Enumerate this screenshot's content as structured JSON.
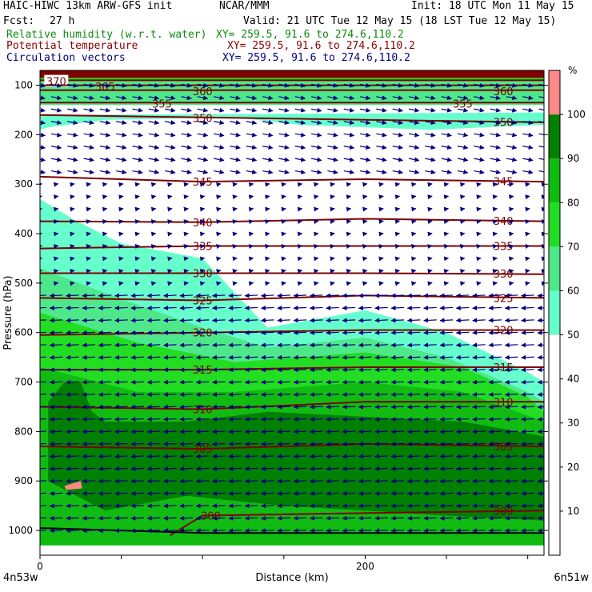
{
  "header": {
    "title_left": "HAIC-HIWC 13km ARW-GFS init",
    "title_mid": "NCAR/MMM",
    "init": "Init: 18 UTC Mon 11 May 15",
    "fcst_label": "Fcst:",
    "fcst_value": "27 h",
    "valid": "Valid: 21 UTC Tue 12 May 15 (18 LST Tue 12 May 15)",
    "field1_name": "Relative humidity (w.r.t. water)",
    "field1_xy": "XY= 259.5, 91.6 to 274.6,110.2",
    "field2_name": "Potential temperature",
    "field2_xy": "XY= 259.5, 91.6 to 274.6,110.2",
    "field3_name": "Circulation vectors",
    "field3_xy": "XY= 259.5, 91.6 to 274.6,110.2"
  },
  "colors": {
    "rh_bands": [
      "#ffffff",
      "#66ffcc",
      "#4ee88a",
      "#22dd22",
      "#11bb11",
      "#007f00",
      "#005f00",
      "#ff8888",
      "#7f0000"
    ],
    "theta": "#7f0000",
    "vectors": "#00007f",
    "surface": "#000000"
  },
  "chart_data": {
    "type": "heatmap",
    "xlabel": "Distance (km)",
    "ylabel": "Pressure (hPa)",
    "xlim": [
      0,
      310
    ],
    "ylim": [
      1050,
      70
    ],
    "x_ticks": [
      "0",
      "200"
    ],
    "x_tick_values": [
      0,
      200
    ],
    "x_minor_step": 50,
    "y_ticks": [
      "100",
      "200",
      "300",
      "400",
      "500",
      "600",
      "700",
      "800",
      "900",
      "1000"
    ],
    "y_tick_values": [
      100,
      200,
      300,
      400,
      500,
      600,
      700,
      800,
      900,
      1000
    ],
    "x_start_label": "4n53w",
    "x_end_label": "6n51w",
    "colorbar": {
      "unit": "%",
      "levels": [
        0,
        10,
        20,
        30,
        40,
        50,
        60,
        70,
        80,
        90,
        100,
        110
      ],
      "labels": [
        "10",
        "20",
        "30",
        "40",
        "50",
        "60",
        "70",
        "80",
        "90",
        "100"
      ],
      "label_values": [
        10,
        20,
        30,
        40,
        50,
        60,
        70,
        80,
        90,
        100
      ],
      "colors": [
        "#ffffff",
        "#ffffff",
        "#ffffff",
        "#ffffff",
        "#ffffff",
        "#66ffcc",
        "#4ee88a",
        "#22dd22",
        "#11bb11",
        "#007f00",
        "#ff8888"
      ]
    },
    "rh_regions": [
      {
        "name": "moist-low-50",
        "level": 50,
        "color": "#66ffcc",
        "boundary": [
          [
            0,
            330
          ],
          [
            20,
            370
          ],
          [
            50,
            420
          ],
          [
            100,
            450
          ],
          [
            140,
            590
          ],
          [
            200,
            555
          ],
          [
            250,
            600
          ],
          [
            300,
            680
          ],
          [
            310,
            700
          ],
          [
            310,
            1030
          ],
          [
            0,
            1030
          ]
        ]
      },
      {
        "name": "moist-low-60",
        "level": 60,
        "color": "#4ee88a",
        "boundary": [
          [
            0,
            470
          ],
          [
            40,
            520
          ],
          [
            100,
            590
          ],
          [
            140,
            630
          ],
          [
            200,
            610
          ],
          [
            250,
            650
          ],
          [
            300,
            720
          ],
          [
            310,
            740
          ],
          [
            310,
            1030
          ],
          [
            0,
            1030
          ]
        ]
      },
      {
        "name": "moist-low-70",
        "level": 70,
        "color": "#22dd22",
        "boundary": [
          [
            0,
            560
          ],
          [
            60,
            620
          ],
          [
            120,
            660
          ],
          [
            200,
            640
          ],
          [
            260,
            670
          ],
          [
            300,
            730
          ],
          [
            310,
            760
          ],
          [
            310,
            1030
          ],
          [
            0,
            1030
          ]
        ]
      },
      {
        "name": "moist-low-80",
        "level": 80,
        "color": "#11bb11",
        "boundary": [
          [
            0,
            670
          ],
          [
            60,
            720
          ],
          [
            120,
            720
          ],
          [
            200,
            700
          ],
          [
            260,
            720
          ],
          [
            310,
            780
          ],
          [
            310,
            1030
          ],
          [
            0,
            1030
          ]
        ]
      },
      {
        "name": "moist-low-90",
        "level": 90,
        "color": "#007f00",
        "boundary": [
          [
            5,
            740
          ],
          [
            15,
            700
          ],
          [
            25,
            700
          ],
          [
            32,
            760
          ],
          [
            40,
            780
          ],
          [
            90,
            780
          ],
          [
            140,
            760
          ],
          [
            200,
            770
          ],
          [
            260,
            780
          ],
          [
            310,
            810
          ],
          [
            310,
            980
          ],
          [
            250,
            970
          ],
          [
            150,
            950
          ],
          [
            90,
            930
          ],
          [
            40,
            960
          ],
          [
            5,
            900
          ]
        ]
      },
      {
        "name": "moist-core-100",
        "level": 100,
        "color": "#ff8888",
        "boundary": [
          [
            15,
            910
          ],
          [
            25,
            900
          ],
          [
            26,
            915
          ],
          [
            16,
            918
          ]
        ]
      },
      {
        "name": "upper-50",
        "level": 50,
        "color": "#66ffcc",
        "boundary": [
          [
            5,
            185
          ],
          [
            40,
            170
          ],
          [
            120,
            165
          ],
          [
            160,
            180
          ],
          [
            240,
            190
          ],
          [
            310,
            180
          ],
          [
            310,
            155
          ],
          [
            0,
            160
          ],
          [
            0,
            190
          ]
        ]
      },
      {
        "name": "upper-60",
        "level": 60,
        "color": "#4ee88a",
        "boundary": [
          [
            0,
            140
          ],
          [
            310,
            140
          ],
          [
            310,
            80
          ],
          [
            0,
            80
          ]
        ]
      },
      {
        "name": "upper-70",
        "level": 70,
        "color": "#22dd22",
        "boundary": [
          [
            0,
            90
          ],
          [
            310,
            90
          ],
          [
            310,
            75
          ],
          [
            0,
            75
          ]
        ]
      },
      {
        "name": "top-110",
        "level": 110,
        "color": "#7f0000",
        "boundary": [
          [
            0,
            70
          ],
          [
            310,
            70
          ],
          [
            310,
            85
          ],
          [
            0,
            85
          ]
        ]
      }
    ],
    "theta_contours": [
      {
        "value": 370,
        "label": "370",
        "points": [
          [
            0,
            90
          ],
          [
            310,
            90
          ]
        ],
        "label_at": [
          [
            10,
            92
          ]
        ]
      },
      {
        "name": "365",
        "value": 365,
        "label": "365",
        "points": [
          [
            0,
            100
          ],
          [
            310,
            100
          ]
        ],
        "label_at": [
          [
            40,
            102
          ]
        ]
      },
      {
        "value": 360,
        "label": "360",
        "points": [
          [
            0,
            110
          ],
          [
            310,
            110
          ]
        ],
        "label_at": [
          [
            100,
            112
          ],
          [
            285,
            112
          ]
        ]
      },
      {
        "value": 355,
        "label": "355",
        "points": [
          [
            0,
            135
          ],
          [
            310,
            135
          ]
        ],
        "label_at": [
          [
            75,
            137
          ],
          [
            260,
            137
          ]
        ]
      },
      {
        "value": 350,
        "label": "350",
        "points": [
          [
            0,
            160
          ],
          [
            100,
            165
          ],
          [
            200,
            170
          ],
          [
            310,
            175
          ]
        ],
        "label_at": [
          [
            100,
            166
          ],
          [
            285,
            174
          ]
        ]
      },
      {
        "value": 345,
        "label": "345",
        "points": [
          [
            0,
            285
          ],
          [
            50,
            290
          ],
          [
            100,
            295
          ],
          [
            200,
            290
          ],
          [
            310,
            295
          ]
        ],
        "label_at": [
          [
            100,
            295
          ],
          [
            285,
            294
          ]
        ]
      },
      {
        "value": 340,
        "label": "340",
        "points": [
          [
            0,
            375
          ],
          [
            100,
            377
          ],
          [
            200,
            370
          ],
          [
            310,
            375
          ]
        ],
        "label_at": [
          [
            100,
            377
          ],
          [
            285,
            374
          ]
        ]
      },
      {
        "value": 335,
        "label": "335",
        "points": [
          [
            0,
            430
          ],
          [
            100,
            425
          ],
          [
            200,
            425
          ],
          [
            310,
            425
          ]
        ],
        "label_at": [
          [
            100,
            425
          ],
          [
            285,
            425
          ]
        ]
      },
      {
        "value": 330,
        "label": "330",
        "points": [
          [
            0,
            480
          ],
          [
            100,
            480
          ],
          [
            200,
            480
          ],
          [
            310,
            482
          ]
        ],
        "label_at": [
          [
            100,
            480
          ],
          [
            285,
            481
          ]
        ]
      },
      {
        "value": 325,
        "label": "325",
        "points": [
          [
            0,
            530
          ],
          [
            100,
            535
          ],
          [
            200,
            525
          ],
          [
            310,
            530
          ]
        ],
        "label_at": [
          [
            100,
            535
          ],
          [
            285,
            530
          ]
        ]
      },
      {
        "value": 320,
        "label": "320",
        "points": [
          [
            0,
            605
          ],
          [
            100,
            600
          ],
          [
            200,
            595
          ],
          [
            310,
            595
          ]
        ],
        "label_at": [
          [
            100,
            600
          ],
          [
            285,
            595
          ]
        ]
      },
      {
        "value": 315,
        "label": "315",
        "points": [
          [
            0,
            675
          ],
          [
            100,
            675
          ],
          [
            200,
            670
          ],
          [
            310,
            670
          ]
        ],
        "label_at": [
          [
            100,
            675
          ],
          [
            285,
            670
          ]
        ]
      },
      {
        "value": 310,
        "label": "310",
        "points": [
          [
            0,
            750
          ],
          [
            100,
            755
          ],
          [
            200,
            740
          ],
          [
            310,
            740
          ]
        ],
        "label_at": [
          [
            100,
            755
          ],
          [
            285,
            740
          ]
        ]
      },
      {
        "value": 305,
        "label": "305",
        "points": [
          [
            0,
            830
          ],
          [
            100,
            835
          ],
          [
            200,
            825
          ],
          [
            310,
            830
          ]
        ],
        "label_at": [
          [
            100,
            835
          ],
          [
            285,
            830
          ]
        ]
      },
      {
        "value": 300,
        "label": "300",
        "points": [
          [
            80,
            1010
          ],
          [
            100,
            970
          ],
          [
            200,
            965
          ],
          [
            310,
            960
          ]
        ],
        "label_at": [
          [
            105,
            970
          ],
          [
            285,
            960
          ]
        ]
      }
    ],
    "surface_line": [
      [
        0,
        995
      ],
      [
        50,
        1000
      ],
      [
        100,
        1005
      ],
      [
        200,
        1005
      ],
      [
        310,
        1005
      ]
    ],
    "wind_vectors": {
      "x_spacing_km": 10,
      "p_spacing_hpa": 25,
      "x_range": [
        0,
        310
      ],
      "p_range": [
        100,
        1000
      ],
      "layers": [
        {
          "p_min": 100,
          "p_max": 280,
          "u": 0.8,
          "v": -0.15
        },
        {
          "p_min": 280,
          "p_max": 520,
          "u": 0.3,
          "v": 0.05
        },
        {
          "p_min": 520,
          "p_max": 1000,
          "u": -1,
          "v": -0.05
        }
      ]
    }
  }
}
